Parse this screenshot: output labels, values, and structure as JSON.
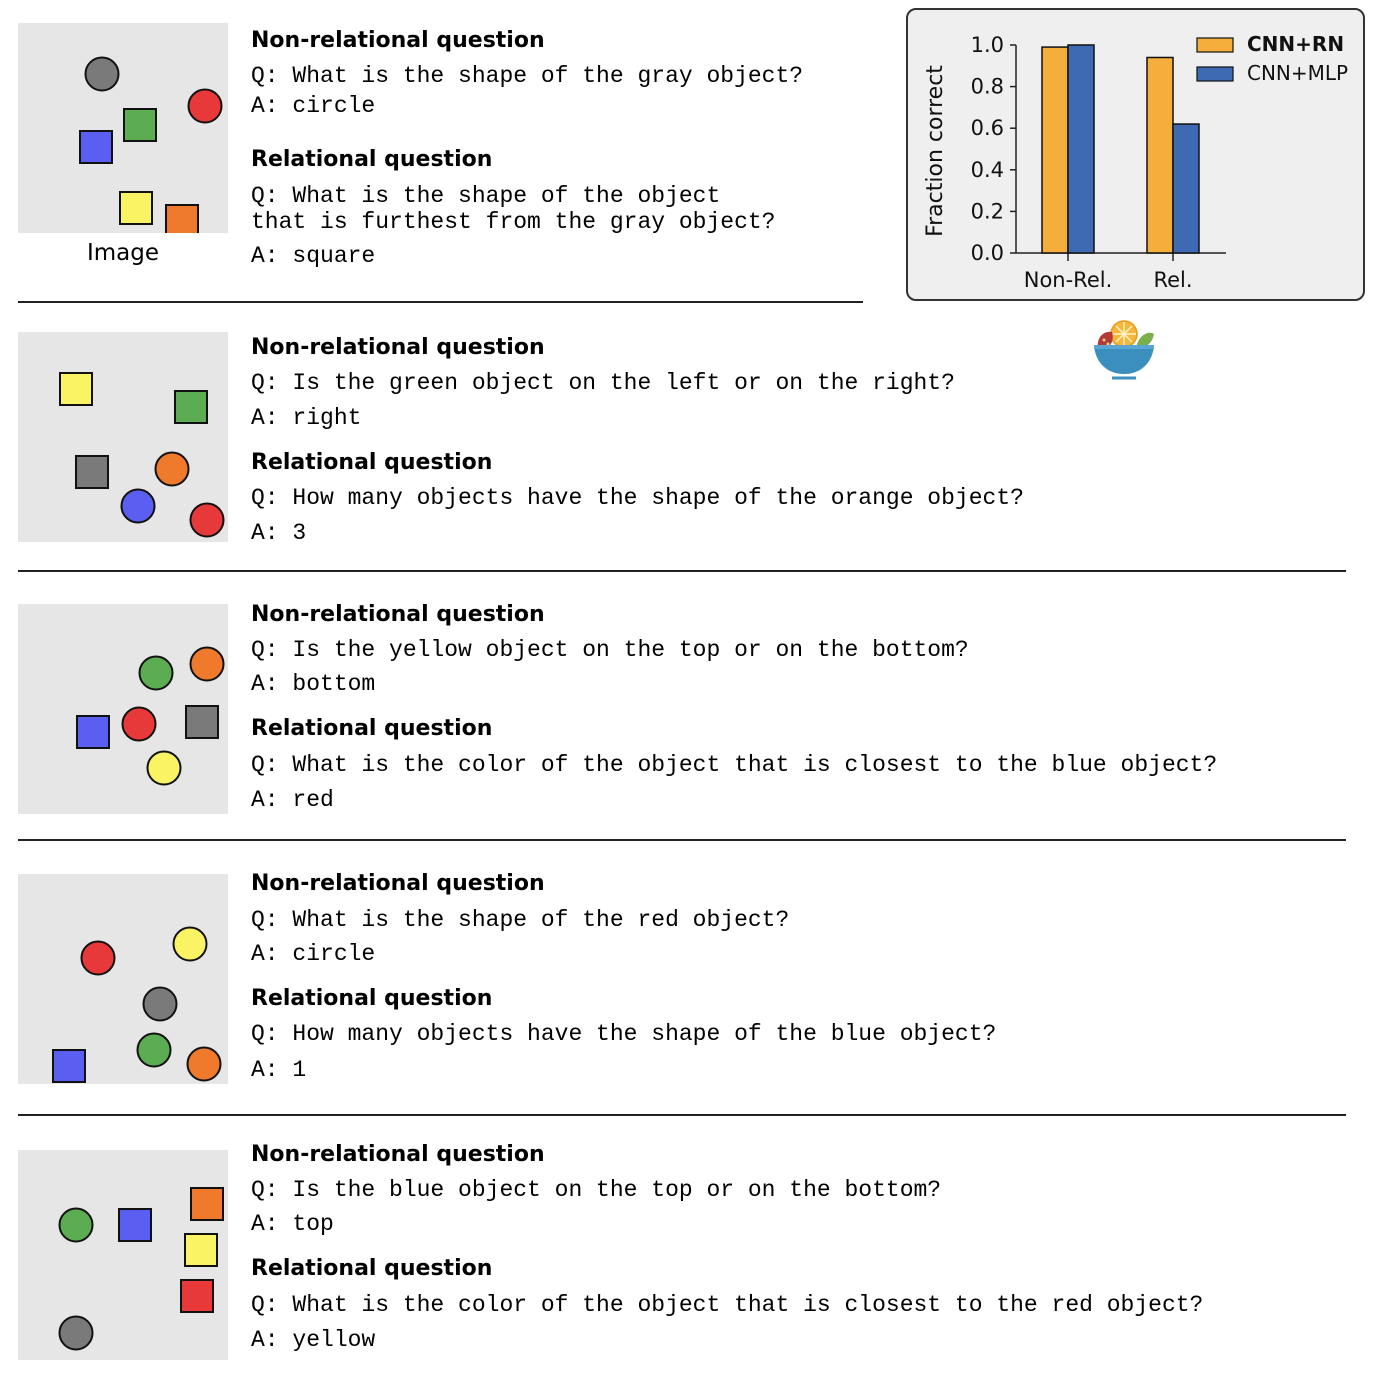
{
  "image_caption": "Image",
  "examples": [
    {
      "nonrel_heading": "Non-relational question",
      "nonrel_q": "Q: What is the shape of the gray object?",
      "nonrel_a": "A: circle",
      "rel_heading": "Relational question",
      "rel_q": "Q: What is the shape of the object\nthat is furthest from the gray object?",
      "rel_a": "A: square",
      "objects": [
        {
          "shape": "circle",
          "color": "gray"
        },
        {
          "shape": "circle",
          "color": "red"
        },
        {
          "shape": "square",
          "color": "green"
        },
        {
          "shape": "square",
          "color": "blue"
        },
        {
          "shape": "square",
          "color": "yellow"
        },
        {
          "shape": "square",
          "color": "orange"
        }
      ]
    },
    {
      "nonrel_heading": "Non-relational question",
      "nonrel_q": "Q: Is the green object on the left or on the right?",
      "nonrel_a": "A: right",
      "rel_heading": "Relational question",
      "rel_q": "Q: How many objects have the shape of the orange object?",
      "rel_a": "A: 3",
      "objects": [
        {
          "shape": "square",
          "color": "yellow"
        },
        {
          "shape": "square",
          "color": "green"
        },
        {
          "shape": "square",
          "color": "gray"
        },
        {
          "shape": "circle",
          "color": "orange"
        },
        {
          "shape": "circle",
          "color": "blue"
        },
        {
          "shape": "circle",
          "color": "red"
        }
      ]
    },
    {
      "nonrel_heading": "Non-relational question",
      "nonrel_q": "Q: Is the yellow object on the top or on the bottom?",
      "nonrel_a": "A: bottom",
      "rel_heading": "Relational question",
      "rel_q": "Q: What is the color of the object that is closest to the blue object?",
      "rel_a": "A: red",
      "objects": [
        {
          "shape": "circle",
          "color": "green"
        },
        {
          "shape": "circle",
          "color": "orange"
        },
        {
          "shape": "square",
          "color": "blue"
        },
        {
          "shape": "circle",
          "color": "red"
        },
        {
          "shape": "square",
          "color": "gray"
        },
        {
          "shape": "circle",
          "color": "yellow"
        }
      ]
    },
    {
      "nonrel_heading": "Non-relational question",
      "nonrel_q": "Q: What is the shape of the red object?",
      "nonrel_a": "A: circle",
      "rel_heading": "Relational question",
      "rel_q": "Q: How many objects have the shape of the blue object?",
      "rel_a": "A: 1",
      "objects": [
        {
          "shape": "circle",
          "color": "red"
        },
        {
          "shape": "circle",
          "color": "yellow"
        },
        {
          "shape": "circle",
          "color": "gray"
        },
        {
          "shape": "circle",
          "color": "green"
        },
        {
          "shape": "circle",
          "color": "orange"
        },
        {
          "shape": "square",
          "color": "blue"
        }
      ]
    },
    {
      "nonrel_heading": "Non-relational question",
      "nonrel_q": "Q: Is the blue object on the top or on the bottom?",
      "nonrel_a": "A: top",
      "rel_heading": "Relational question",
      "rel_q": "Q: What is the color of the object that is closest to the red object?",
      "rel_a": "A: yellow",
      "objects": [
        {
          "shape": "square",
          "color": "orange"
        },
        {
          "shape": "circle",
          "color": "green"
        },
        {
          "shape": "square",
          "color": "blue"
        },
        {
          "shape": "square",
          "color": "yellow"
        },
        {
          "shape": "square",
          "color": "red"
        },
        {
          "shape": "circle",
          "color": "gray"
        }
      ]
    }
  ],
  "palette": {
    "gray": "#7a7a7a",
    "red": "#e8393a",
    "green": "#5cad52",
    "blue": "#5a5ff2",
    "yellow": "#faf464",
    "orange": "#f07a2c",
    "panel_bg": "#e6e6e6"
  },
  "chart_data": {
    "type": "bar",
    "categories": [
      "Non-Rel.",
      "Rel."
    ],
    "series": [
      {
        "name": "CNN+RN",
        "values": [
          0.99,
          0.94
        ],
        "color": "#f5ad3c"
      },
      {
        "name": "CNN+MLP",
        "values": [
          1.0,
          0.62
        ],
        "color": "#3d6ab3"
      }
    ],
    "title": "",
    "xlabel": "",
    "ylabel": "Fraction correct",
    "ylim": [
      0,
      1.0
    ],
    "yticks": [
      "0.0",
      "0.2",
      "0.4",
      "0.6",
      "0.8",
      "1.0"
    ],
    "grid": false,
    "legend_position": "top-right"
  },
  "logo": {
    "icon": "fruit-bowl-icon"
  }
}
